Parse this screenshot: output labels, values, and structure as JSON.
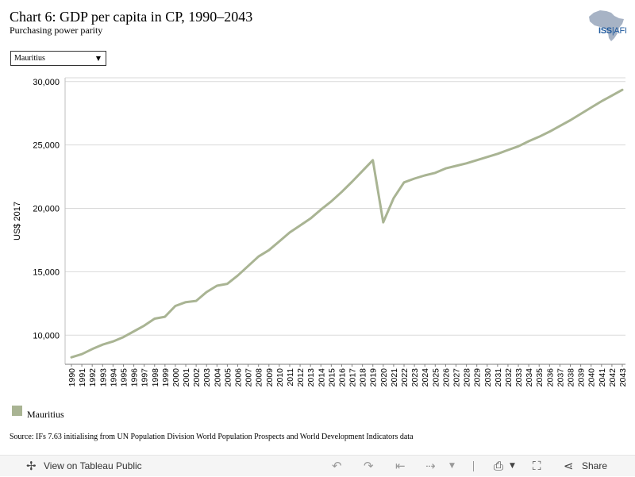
{
  "header": {
    "title": "Chart 6: GDP per capita in CP, 1990–2043",
    "subtitle": "Purchasing power parity"
  },
  "logo": {
    "text_main": "ISS",
    "text_sep": "|",
    "text_tail": "AFI",
    "icon": "africa-map-icon",
    "color": "#1f5a9e"
  },
  "selector": {
    "value": "Mauritius",
    "icon": "dropdown-arrow-icon"
  },
  "legend": {
    "label": "Mauritius",
    "color": "#a9b493"
  },
  "source": "Source: IFs 7.63 initialising from UN Population Division World Population Prospects and World Development Indicators data",
  "toolbar": {
    "view_label": "View on Tableau Public",
    "share_label": "Share",
    "icons": {
      "view": "tableau-icon",
      "undo": "undo-icon",
      "redo": "redo-icon",
      "revert": "revert-icon",
      "refresh": "refresh-icon",
      "download": "download-icon",
      "fullscreen": "fullscreen-icon",
      "share": "share-icon"
    }
  },
  "chart_data": {
    "type": "line",
    "ylabel": "US$ 2017",
    "xlabel": "",
    "ylim": [
      7700,
      30300
    ],
    "yticks": [
      10000,
      15000,
      20000,
      25000,
      30000
    ],
    "ytick_labels": [
      "10,000",
      "15,000",
      "20,000",
      "25,000",
      "30,000"
    ],
    "grid": true,
    "legend_position": "bottom-left",
    "line_color": "#a9b493",
    "x": [
      1990,
      1991,
      1992,
      1993,
      1994,
      1995,
      1996,
      1997,
      1998,
      1999,
      2000,
      2001,
      2002,
      2003,
      2004,
      2005,
      2006,
      2007,
      2008,
      2009,
      2010,
      2011,
      2012,
      2013,
      2014,
      2015,
      2016,
      2017,
      2018,
      2019,
      2020,
      2021,
      2022,
      2023,
      2024,
      2025,
      2026,
      2027,
      2028,
      2029,
      2030,
      2031,
      2032,
      2033,
      2034,
      2035,
      2036,
      2037,
      2038,
      2039,
      2040,
      2041,
      2042,
      2043
    ],
    "series": [
      {
        "name": "Mauritius",
        "values": [
          8250,
          8500,
          8900,
          9250,
          9500,
          9850,
          10300,
          10750,
          11300,
          11450,
          12300,
          12600,
          12700,
          13400,
          13900,
          14050,
          14700,
          15450,
          16200,
          16700,
          17400,
          18100,
          18650,
          19200,
          19900,
          20550,
          21300,
          22100,
          22950,
          23800,
          18900,
          20800,
          22050,
          22350,
          22600,
          22800,
          23150,
          23350,
          23550,
          23800,
          24050,
          24300,
          24600,
          24900,
          25300,
          25650,
          26050,
          26500,
          26950,
          27450,
          27950,
          28450,
          28900,
          29350
        ]
      }
    ]
  }
}
